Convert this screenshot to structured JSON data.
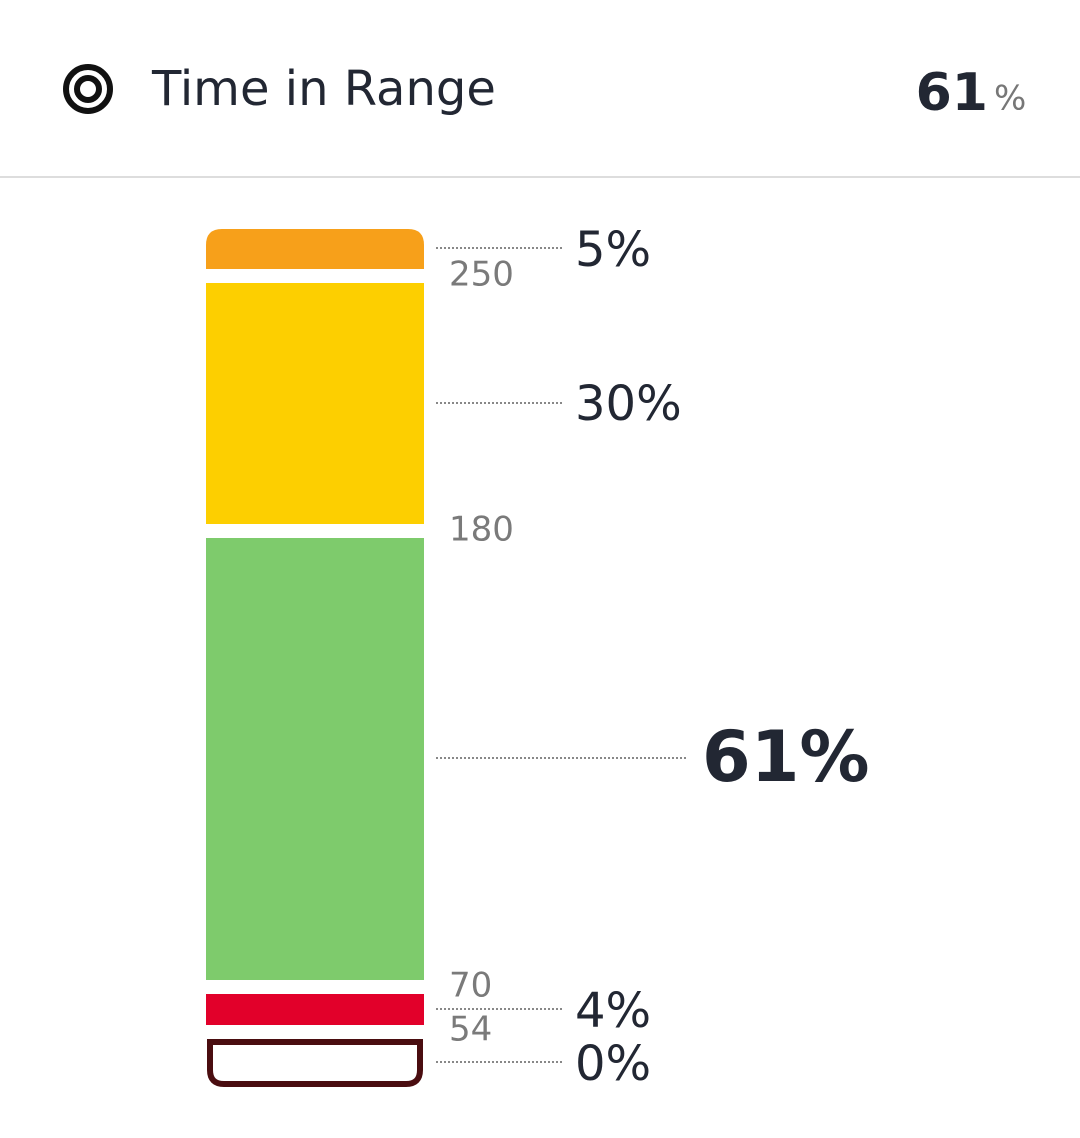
{
  "header": {
    "title": "Time in Range",
    "value": "61",
    "unit": "%"
  },
  "thresholds": [
    "250",
    "180",
    "70",
    "54"
  ],
  "segments": [
    {
      "label": "5%"
    },
    {
      "label": "30%"
    },
    {
      "label": "61%"
    },
    {
      "label": "4%"
    },
    {
      "label": "0%"
    }
  ]
}
